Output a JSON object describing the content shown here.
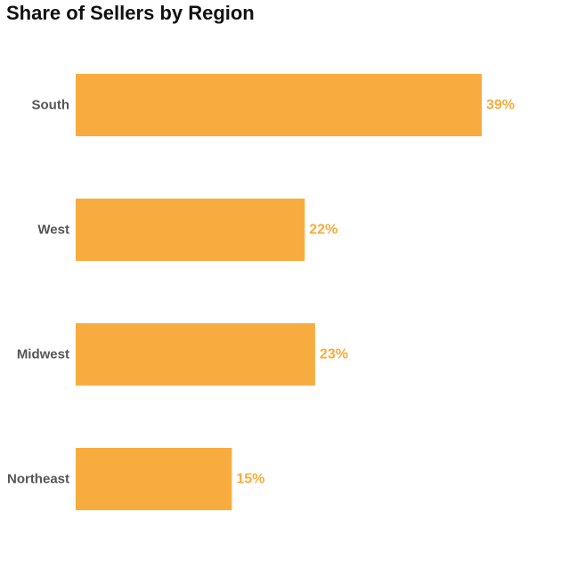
{
  "chart_data": {
    "type": "bar",
    "orientation": "horizontal",
    "title": "Share of Sellers by Region",
    "xlabel": "",
    "ylabel": "",
    "categories": [
      "South",
      "West",
      "Midwest",
      "Northeast"
    ],
    "values": [
      39,
      22,
      23,
      15
    ],
    "value_labels": [
      "39%",
      "22%",
      "23%",
      "15%"
    ],
    "unit": "%",
    "xlim": [
      0,
      39
    ],
    "grid": false,
    "legend": "none",
    "bar_color": "#F8AC40",
    "value_label_color": "#F8AC40"
  }
}
